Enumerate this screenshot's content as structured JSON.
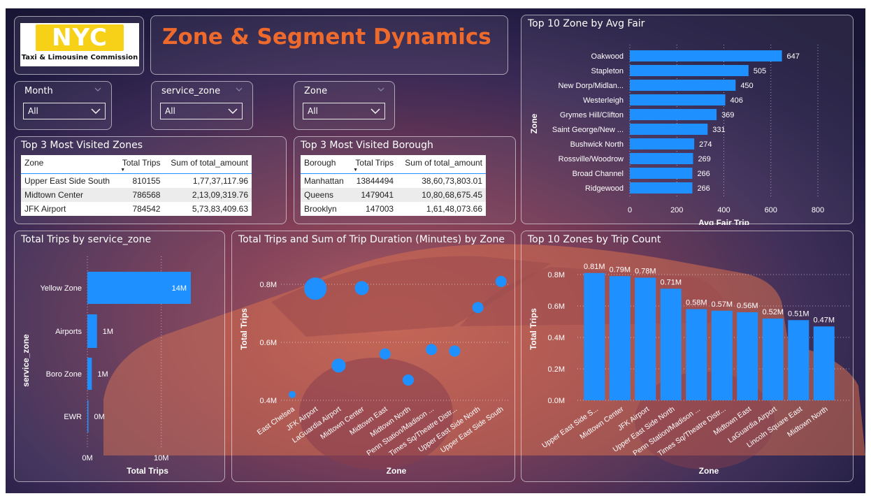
{
  "logo": {
    "brand": "NYC",
    "subtitle": "Taxi & Limousine Commission"
  },
  "page_title": "Zone & Segment Dynamics",
  "slicers": [
    {
      "label": "Month",
      "value": "All"
    },
    {
      "label": "service_zone",
      "value": "All"
    },
    {
      "label": "Zone",
      "value": "All"
    }
  ],
  "icons": [
    "chevron-down-icon",
    "dropdown-arrow-icon",
    "sort-descending-icon"
  ],
  "colors": {
    "bar": "#1e90ff",
    "title": "#ee6a2c",
    "logo_yellow": "#f7d117"
  },
  "zones_table": {
    "title": "Top 3 Most Visited Zones",
    "headers": [
      "Zone",
      "Total Trips",
      "Sum of total_amount"
    ],
    "rows": [
      [
        "Upper East Side South",
        "810155",
        "1,77,37,117.96"
      ],
      [
        "Midtown Center",
        "786568",
        "2,13,09,319.76"
      ],
      [
        "JFK Airport",
        "784542",
        "5,73,83,409.63"
      ]
    ]
  },
  "borough_table": {
    "title": "Top 3 Most Visited Borough",
    "headers": [
      "Borough",
      "Total Trips",
      "Sum of total_amount"
    ],
    "rows": [
      [
        "Manhattan",
        "13844494",
        "38,60,73,803.01"
      ],
      [
        "Queens",
        "1479041",
        "10,80,68,675.45"
      ],
      [
        "Brooklyn",
        "147003",
        "1,61,48,073.66"
      ]
    ]
  },
  "chart_data": [
    {
      "id": "avg-fair",
      "type": "bar",
      "orientation": "horizontal",
      "title": "Top 10 Zone by Avg Fair",
      "xlabel": "Avg Fair Trip",
      "ylabel": "Zone",
      "categories": [
        "Oakwood",
        "Stapleton",
        "New Dorp/Midlan...",
        "Westerleigh",
        "Grymes Hill/Clifton",
        "Saint George/New ...",
        "Bushwick North",
        "Rossville/Woodrow",
        "Broad Channel",
        "Ridgewood"
      ],
      "values": [
        647,
        505,
        450,
        406,
        369,
        331,
        274,
        269,
        266,
        266
      ],
      "data_labels": [
        "647",
        "505",
        "450",
        "406",
        "369",
        "331",
        "274",
        "269",
        "266",
        "266"
      ],
      "xlim": [
        0,
        800
      ],
      "xticks": [
        0,
        200,
        400,
        600,
        800
      ],
      "xtick_labels": [
        "0",
        "200",
        "400",
        "600",
        "800"
      ],
      "grid": true
    },
    {
      "id": "service-zone",
      "type": "bar",
      "orientation": "horizontal",
      "title": "Total Trips by service_zone",
      "xlabel": "Total Trips",
      "ylabel": "service_zone",
      "categories": [
        "Yellow Zone",
        "Airports",
        "Boro Zone",
        "EWR"
      ],
      "values": [
        14000000,
        1300000,
        600000,
        20000
      ],
      "data_labels": [
        "14M",
        "1M",
        "1M",
        "0M"
      ],
      "xlim": [
        0,
        14000000
      ],
      "xticks": [
        0,
        10000000
      ],
      "xtick_labels": [
        "0M",
        "10M"
      ],
      "grid": true
    },
    {
      "id": "trips-duration",
      "type": "scatter",
      "title": "Total Trips and Sum of Trip Duration (Minutes) by Zone",
      "xlabel": "Zone",
      "ylabel": "Total Trips",
      "categories": [
        "East Chelsea",
        "JFK Airport",
        "LaGuardia Airport",
        "Midtown Center",
        "Midtown East",
        "Midtown North",
        "Penn Station/Madison ...",
        "Times Sq/Theatre Distr...",
        "Upper East Side North",
        "Upper East Side South"
      ],
      "values": [
        420000,
        785000,
        520000,
        787000,
        560000,
        470000,
        575000,
        570000,
        720000,
        810000
      ],
      "bubble_size": [
        1.0,
        3.2,
        2.0,
        2.0,
        1.6,
        1.6,
        1.6,
        1.6,
        1.6,
        1.6
      ],
      "ylim": [
        350000,
        850000
      ],
      "yticks": [
        400000,
        600000,
        800000
      ],
      "ytick_labels": [
        "0.4M",
        "0.6M",
        "0.8M"
      ],
      "grid": true
    },
    {
      "id": "trip-count",
      "type": "bar",
      "title": "Top 10 Zones by Trip Count",
      "xlabel": "Zone",
      "ylabel": "Total Trips",
      "categories": [
        "Upper East Side S...",
        "Midtown Center",
        "JFK Airport",
        "Upper East Side North",
        "Penn Station/Madison ...",
        "Times Sq/Theatre Distr...",
        "Midtown East",
        "LaGuardia Airport",
        "Lincoln Square East",
        "Midtown North"
      ],
      "values": [
        810000,
        790000,
        780000,
        710000,
        580000,
        570000,
        560000,
        520000,
        510000,
        470000
      ],
      "data_labels": [
        "0.81M",
        "0.79M",
        "0.78M",
        "0.71M",
        "0.58M",
        "0.57M",
        "0.56M",
        "0.52M",
        "0.51M",
        "0.47M"
      ],
      "ylim": [
        0,
        850000
      ],
      "yticks": [
        0,
        200000,
        400000,
        600000,
        800000
      ],
      "ytick_labels": [
        "0.0M",
        "0.2M",
        "0.4M",
        "0.6M",
        "0.8M"
      ],
      "grid": true
    }
  ]
}
